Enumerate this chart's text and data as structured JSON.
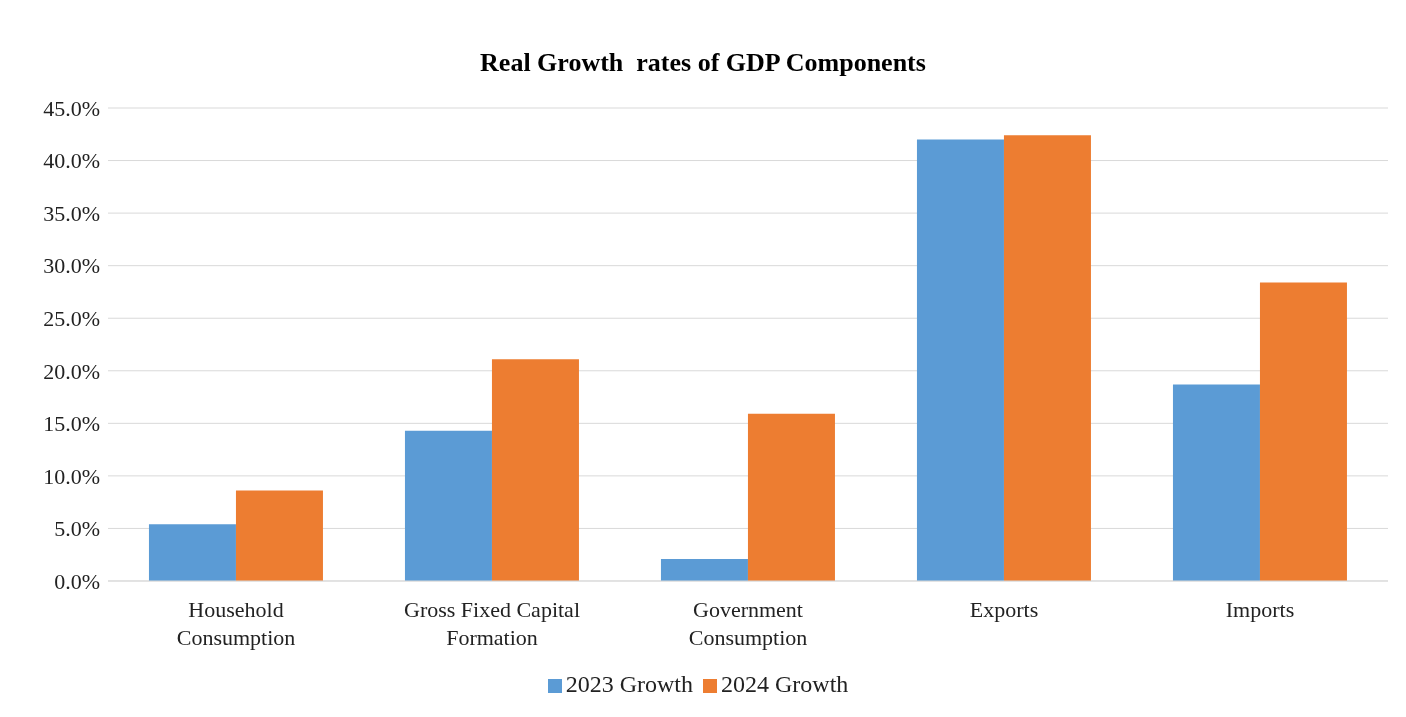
{
  "chart_data": {
    "type": "bar",
    "title": "Real Growth  rates of GDP Components",
    "categories": [
      "Household Consumption",
      "Gross Fixed Capital Formation",
      "Government Consumption",
      "Exports",
      "Imports"
    ],
    "series": [
      {
        "name": "2023 Growth",
        "color": "#5b9bd5",
        "values": [
          5.4,
          14.3,
          2.1,
          42.0,
          18.7
        ]
      },
      {
        "name": "2024 Growth",
        "color": "#ed7d31",
        "values": [
          8.6,
          21.1,
          15.9,
          42.4,
          28.4
        ]
      }
    ],
    "ylim": [
      0,
      45
    ],
    "yticks": [
      {
        "value": 0,
        "label": "0.0%"
      },
      {
        "value": 5,
        "label": "5.0%"
      },
      {
        "value": 10,
        "label": "10.0%"
      },
      {
        "value": 15,
        "label": "15.0%"
      },
      {
        "value": 20,
        "label": "20.0%"
      },
      {
        "value": 25,
        "label": "25.0%"
      },
      {
        "value": 30,
        "label": "30.0%"
      },
      {
        "value": 35,
        "label": "35.0%"
      },
      {
        "value": 40,
        "label": "40.0%"
      },
      {
        "value": 45,
        "label": "45.0%"
      }
    ],
    "grid": "y",
    "legend": "bottom"
  }
}
